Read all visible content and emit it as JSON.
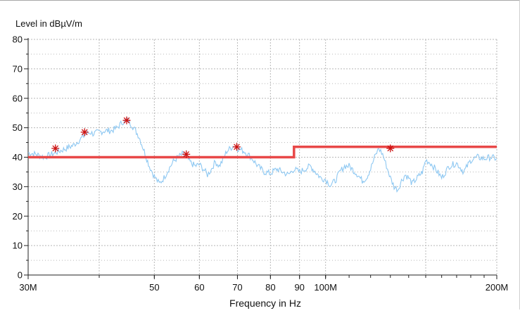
{
  "chart_data": {
    "type": "line",
    "title": "",
    "ylabel": "Level in dBµV/m",
    "xlabel": "Frequency in Hz",
    "x_scale": "log",
    "xlim": [
      30000000,
      200000000
    ],
    "ylim": [
      0,
      80
    ],
    "grid": true,
    "y_ticks": [
      0,
      10,
      20,
      30,
      40,
      50,
      60,
      70,
      80
    ],
    "x_ticks": [
      {
        "value": 30000000,
        "label": "30M"
      },
      {
        "value": 50000000,
        "label": "50"
      },
      {
        "value": 60000000,
        "label": "60"
      },
      {
        "value": 70000000,
        "label": "70"
      },
      {
        "value": 80000000,
        "label": "80"
      },
      {
        "value": 90000000,
        "label": "90"
      },
      {
        "value": 100000000,
        "label": "100M"
      },
      {
        "value": 200000000,
        "label": "200M"
      }
    ],
    "x_minor_gridlines": [
      40000000,
      150000000
    ],
    "series": [
      {
        "role": "measurement",
        "color": "#8ec8f2",
        "points": [
          [
            30000000,
            41.5
          ],
          [
            31000000,
            41
          ],
          [
            32000000,
            40
          ],
          [
            33000000,
            41
          ],
          [
            34000000,
            42
          ],
          [
            35000000,
            43
          ],
          [
            36000000,
            44
          ],
          [
            37000000,
            46
          ],
          [
            38000000,
            48
          ],
          [
            38500000,
            48.5
          ],
          [
            39000000,
            48
          ],
          [
            40000000,
            48.5
          ],
          [
            41000000,
            49
          ],
          [
            42000000,
            49
          ],
          [
            43000000,
            50
          ],
          [
            44000000,
            52
          ],
          [
            45000000,
            52.5
          ],
          [
            46000000,
            50
          ],
          [
            47000000,
            47
          ],
          [
            48000000,
            42
          ],
          [
            49000000,
            37
          ],
          [
            50000000,
            33.5
          ],
          [
            51000000,
            31
          ],
          [
            52000000,
            33
          ],
          [
            53000000,
            36
          ],
          [
            54000000,
            38.5
          ],
          [
            55000000,
            40
          ],
          [
            56000000,
            41
          ],
          [
            57000000,
            40
          ],
          [
            58000000,
            38
          ],
          [
            59000000,
            37
          ],
          [
            60000000,
            37.5
          ],
          [
            61000000,
            36
          ],
          [
            62000000,
            34
          ],
          [
            63000000,
            36
          ],
          [
            64000000,
            38.5
          ],
          [
            65000000,
            37
          ],
          [
            66000000,
            39
          ],
          [
            67000000,
            42
          ],
          [
            68000000,
            43
          ],
          [
            69000000,
            44
          ],
          [
            70000000,
            43
          ],
          [
            72000000,
            42
          ],
          [
            74000000,
            40
          ],
          [
            76000000,
            37
          ],
          [
            78000000,
            35
          ],
          [
            80000000,
            34.5
          ],
          [
            82000000,
            36
          ],
          [
            84000000,
            35
          ],
          [
            86000000,
            34
          ],
          [
            88000000,
            36
          ],
          [
            90000000,
            35
          ],
          [
            92000000,
            36
          ],
          [
            94000000,
            37
          ],
          [
            96000000,
            35
          ],
          [
            98000000,
            33
          ],
          [
            100000000,
            32.5
          ],
          [
            102000000,
            30.5
          ],
          [
            104000000,
            32
          ],
          [
            106000000,
            35
          ],
          [
            108000000,
            37
          ],
          [
            110000000,
            37
          ],
          [
            112000000,
            35.5
          ],
          [
            114000000,
            34
          ],
          [
            116000000,
            32
          ],
          [
            118000000,
            33
          ],
          [
            120000000,
            36
          ],
          [
            122000000,
            40
          ],
          [
            124000000,
            43
          ],
          [
            126000000,
            41
          ],
          [
            128000000,
            37
          ],
          [
            130000000,
            33
          ],
          [
            132000000,
            30
          ],
          [
            134000000,
            29
          ],
          [
            136000000,
            32
          ],
          [
            138000000,
            34
          ],
          [
            140000000,
            33
          ],
          [
            142000000,
            31
          ],
          [
            145000000,
            33
          ],
          [
            148000000,
            35
          ],
          [
            150000000,
            39
          ],
          [
            153000000,
            38
          ],
          [
            156000000,
            36
          ],
          [
            160000000,
            33
          ],
          [
            165000000,
            37
          ],
          [
            170000000,
            38
          ],
          [
            175000000,
            35
          ],
          [
            180000000,
            39
          ],
          [
            185000000,
            40
          ],
          [
            190000000,
            39.5
          ],
          [
            195000000,
            40
          ],
          [
            200000000,
            39.5
          ]
        ]
      },
      {
        "role": "limit",
        "color": "#e84848",
        "points": [
          [
            30000000,
            40
          ],
          [
            88000000,
            40
          ],
          [
            88000000,
            43.5
          ],
          [
            200000000,
            43.5
          ]
        ]
      }
    ],
    "peaks": [
      {
        "x": 33500000,
        "y": 43
      },
      {
        "x": 37700000,
        "y": 48.5
      },
      {
        "x": 44700000,
        "y": 52.5
      },
      {
        "x": 56900000,
        "y": 41
      },
      {
        "x": 69800000,
        "y": 43.5
      },
      {
        "x": 130000000,
        "y": 43
      }
    ],
    "peak_marker_color": "#cc1111"
  }
}
